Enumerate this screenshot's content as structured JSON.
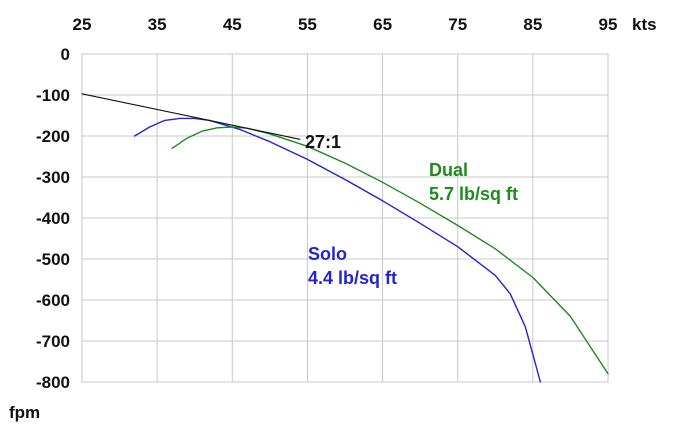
{
  "chart_data": {
    "type": "line",
    "grid": true,
    "xlim": [
      25,
      95
    ],
    "ylim": [
      -800,
      0
    ],
    "x_ticks": [
      25,
      35,
      45,
      55,
      65,
      75,
      85,
      95
    ],
    "y_ticks": [
      0,
      -100,
      -200,
      -300,
      -400,
      -500,
      -600,
      -700,
      -800
    ],
    "x_tick_labels": [
      "25",
      "35",
      "45",
      "55",
      "65",
      "75",
      "85",
      "95"
    ],
    "y_tick_labels": [
      "0",
      "-100",
      "-200",
      "-300",
      "-400",
      "-500",
      "-600",
      "-700",
      "-800"
    ],
    "x_unit": "kts",
    "y_unit": "fpm",
    "series": [
      {
        "name": "Solo",
        "sublabel": "4.4 lb/sq ft",
        "color": "#2323d6",
        "points": [
          [
            32,
            -200
          ],
          [
            34,
            -178
          ],
          [
            36,
            -162
          ],
          [
            38,
            -157
          ],
          [
            40,
            -157
          ],
          [
            42,
            -162
          ],
          [
            44,
            -173
          ],
          [
            46,
            -184
          ],
          [
            50,
            -214
          ],
          [
            55,
            -257
          ],
          [
            60,
            -306
          ],
          [
            65,
            -358
          ],
          [
            70,
            -413
          ],
          [
            75,
            -470
          ],
          [
            80,
            -540
          ],
          [
            82,
            -585
          ],
          [
            84,
            -665
          ],
          [
            86,
            -800
          ]
        ]
      },
      {
        "name": "Dual",
        "sublabel": "5.7 lb/sq ft",
        "color": "#1f8a1f",
        "points": [
          [
            37,
            -230
          ],
          [
            39,
            -205
          ],
          [
            41,
            -188
          ],
          [
            43,
            -180
          ],
          [
            45,
            -178
          ],
          [
            47,
            -181
          ],
          [
            50,
            -195
          ],
          [
            55,
            -225
          ],
          [
            60,
            -266
          ],
          [
            65,
            -313
          ],
          [
            70,
            -364
          ],
          [
            75,
            -418
          ],
          [
            80,
            -475
          ],
          [
            85,
            -545
          ],
          [
            90,
            -640
          ],
          [
            95,
            -780
          ]
        ]
      },
      {
        "name": "27:1",
        "color": "#111111",
        "points": [
          [
            25,
            -97
          ],
          [
            54,
            -208
          ]
        ]
      }
    ]
  },
  "annotations": {
    "glide_ratio": "27:1",
    "dual_name": "Dual",
    "dual_sub": "5.7 lb/sq ft",
    "solo_name": "Solo",
    "solo_sub": "4.4 lb/sq ft"
  }
}
